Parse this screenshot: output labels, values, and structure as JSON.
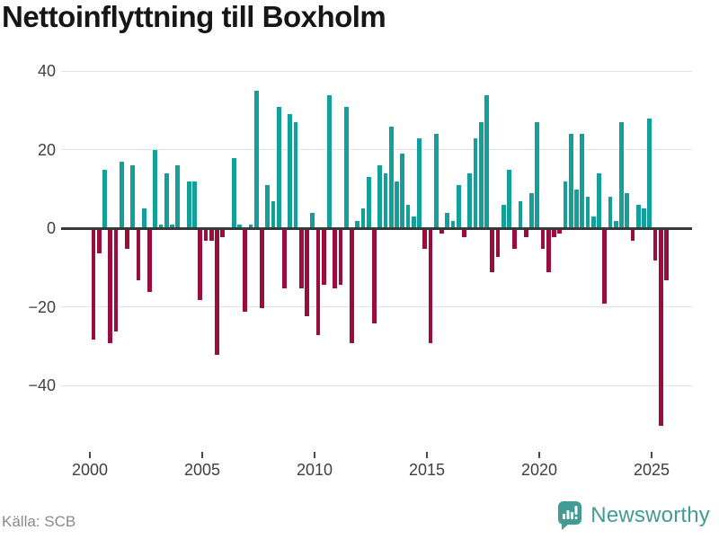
{
  "title": "Nettoinflyttning till Boxholm",
  "source": "Källa: SCB",
  "branding": {
    "logo_text": "Newsworthy",
    "brand_color": "#429c95"
  },
  "colors": {
    "positive_bar": "#12a19a",
    "negative_bar": "#9b0e3c",
    "gridline": "#e2e2e2",
    "zero_line": "#383838",
    "axis_text": "#404040",
    "source_text": "#8a8a8a"
  },
  "chart_data": {
    "type": "bar",
    "title": "Nettoinflyttning till Boxholm",
    "frequency": "quarterly",
    "start_period": "2000-Q1",
    "end_period": "2025-Q3",
    "values": [
      -28,
      -6,
      15,
      -29,
      -26,
      17,
      -5,
      16,
      -13,
      5,
      -16,
      20,
      1,
      14,
      1,
      16,
      0,
      12,
      12,
      -18,
      -3,
      -3,
      -32,
      -2,
      0,
      18,
      1,
      -21,
      1,
      35,
      -20,
      11,
      7,
      31,
      -15,
      29,
      27,
      -15,
      -22,
      4,
      -27,
      -14,
      34,
      -15,
      -14,
      31,
      -29,
      2,
      5,
      13,
      -24,
      16,
      14,
      26,
      12,
      19,
      6,
      3,
      23,
      -5,
      -29,
      24,
      -1,
      4,
      2,
      11,
      -2,
      14,
      23,
      27,
      34,
      -11,
      -7,
      6,
      15,
      -5,
      7,
      -2,
      9,
      27,
      -5,
      -11,
      -2,
      -1,
      12,
      24,
      10,
      24,
      8,
      3,
      14,
      -19,
      8,
      2,
      27,
      9,
      -3,
      6,
      5,
      28,
      -8,
      -50,
      -13
    ],
    "x_ticks": [
      2000,
      2005,
      2010,
      2015,
      2020,
      2025
    ],
    "x_tick_labels": [
      "2000",
      "2005",
      "2010",
      "2015",
      "2020",
      "2025"
    ],
    "y_ticks": [
      40,
      20,
      0,
      -20,
      -40
    ],
    "y_tick_labels": [
      "40",
      "20",
      "0",
      "−20",
      "−40"
    ],
    "ylim": [
      -52,
      42
    ],
    "grid": "horizontal",
    "legend": "none",
    "positive_color": "#12a19a",
    "negative_color": "#9b0e3c"
  }
}
